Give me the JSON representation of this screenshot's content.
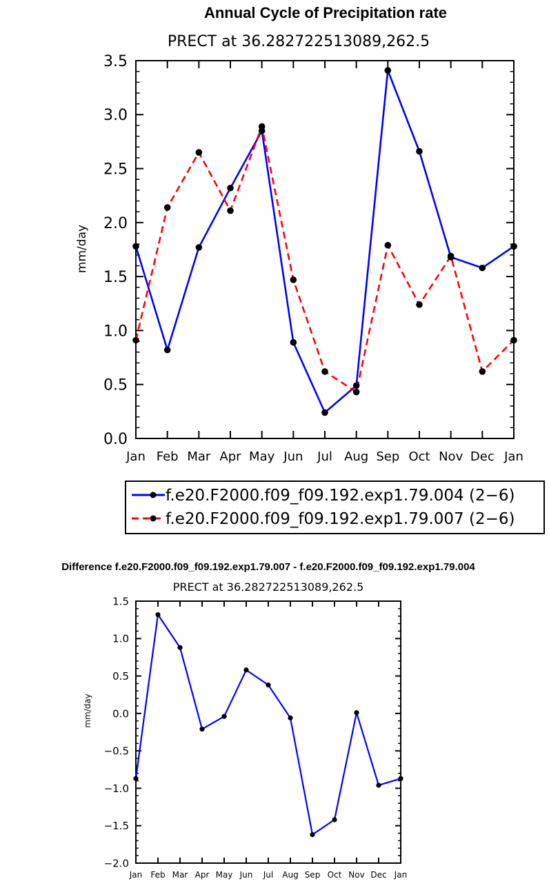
{
  "chart_data": [
    {
      "type": "line",
      "title": "Annual Cycle of Precipitation rate",
      "subtitle": "PRECT at 36.282722513089,262.5",
      "xlabel": "",
      "ylabel": "mm/day",
      "categories": [
        "Jan",
        "Feb",
        "Mar",
        "Apr",
        "May",
        "Jun",
        "Jul",
        "Aug",
        "Sep",
        "Oct",
        "Nov",
        "Dec",
        "Jan"
      ],
      "ylim": [
        0.0,
        3.5
      ],
      "yticks": [
        "0.0",
        "0.5",
        "1.0",
        "1.5",
        "2.0",
        "2.5",
        "3.0",
        "3.5"
      ],
      "legend_position": "bottom",
      "series": [
        {
          "name": "f.e20.F2000.f09_f09.192.exp1.79.004 (2−6)",
          "color": "#0000ff",
          "dash": "solid",
          "values": [
            1.78,
            0.82,
            1.77,
            2.32,
            2.85,
            0.89,
            0.24,
            0.49,
            3.41,
            2.66,
            1.68,
            1.58,
            1.78
          ]
        },
        {
          "name": "f.e20.F2000.f09_f09.192.exp1.79.007 (2−6)",
          "color": "#ff0000",
          "dash": "dashed",
          "values": [
            0.91,
            2.14,
            2.65,
            2.11,
            2.89,
            1.47,
            0.62,
            0.43,
            1.79,
            1.24,
            1.69,
            0.62,
            0.91
          ]
        }
      ]
    },
    {
      "type": "line",
      "title": "Difference f.e20.F2000.f09_f09.192.exp1.79.007 - f.e20.F2000.f09_f09.192.exp1.79.004",
      "subtitle": "PRECT at 36.282722513089,262.5",
      "xlabel": "",
      "ylabel": "mm/day",
      "categories": [
        "Jan",
        "Feb",
        "Mar",
        "Apr",
        "May",
        "Jun",
        "Jul",
        "Aug",
        "Sep",
        "Oct",
        "Nov",
        "Dec",
        "Jan"
      ],
      "ylim": [
        -2.0,
        1.5
      ],
      "yticks": [
        "−2.0",
        "−1.5",
        "−1.0",
        "−0.5",
        "0.0",
        "0.5",
        "1.0",
        "1.5"
      ],
      "series": [
        {
          "color": "#0000ff",
          "dash": "solid",
          "values": [
            -0.87,
            1.32,
            0.88,
            -0.21,
            -0.04,
            0.58,
            0.38,
            -0.06,
            -1.62,
            -1.42,
            0.01,
            -0.96,
            -0.87
          ]
        }
      ]
    }
  ]
}
